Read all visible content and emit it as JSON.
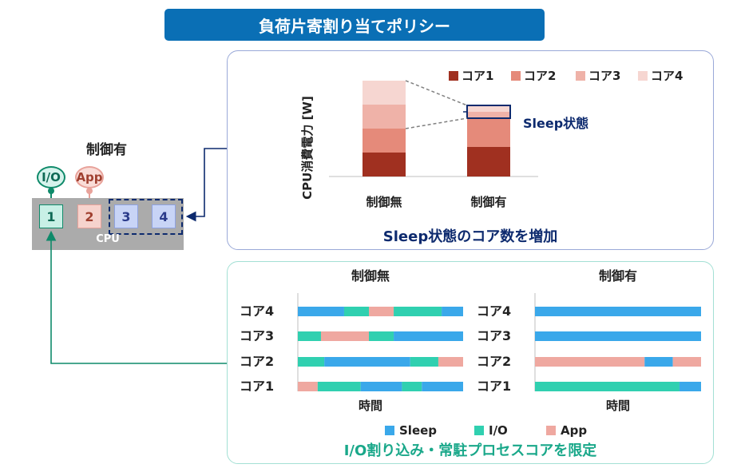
{
  "title": "負荷片寄割り当てポリシー",
  "left": {
    "label": "制御有",
    "io_bubble": "I/O",
    "app_bubble": "App",
    "cores": [
      "1",
      "2",
      "3",
      "4"
    ],
    "cpu_label": "CPU"
  },
  "power_panel": {
    "caption": "Sleep状態のコア数を増加",
    "sleep_note": "Sleep状態"
  },
  "timeline_panel": {
    "caption": "I/O割り込み・常駐プロセスコアを限定",
    "x_label": "時間"
  },
  "colors": {
    "title_bg": "#0a6fb5",
    "core1": "#a03020",
    "core2": "#e58a7a",
    "core3": "#efb2a8",
    "core4": "#f6d6d1",
    "sleep": "#3aa8ea",
    "io": "#30d0b0",
    "app": "#efa8a0",
    "io_green": "#0f8a6a"
  },
  "chart_data": [
    {
      "type": "bar",
      "stacked": true,
      "ylabel": "CPU消費電力 [W]",
      "categories": [
        "制御無",
        "制御有"
      ],
      "series": [
        {
          "name": "コア1",
          "values": [
            30,
            37
          ]
        },
        {
          "name": "コア2",
          "values": [
            30,
            36
          ]
        },
        {
          "name": "コア3",
          "values": [
            30,
            8
          ]
        },
        {
          "name": "コア4",
          "values": [
            30,
            8
          ]
        }
      ],
      "ylim": [
        0,
        120
      ],
      "grid": false,
      "legend": "top"
    },
    {
      "type": "bar",
      "orientation": "horizontal",
      "stacked": true,
      "title": "制御無",
      "xlabel": "時間",
      "categories": [
        "コア4",
        "コア3",
        "コア2",
        "コア1"
      ],
      "segments": [
        [
          [
            "Sleep",
            28
          ],
          [
            "I/O",
            15
          ],
          [
            "App",
            15
          ],
          [
            "I/O",
            29
          ],
          [
            "Sleep",
            13
          ]
        ],
        [
          [
            "I/O",
            14
          ],
          [
            "App",
            29
          ],
          [
            "I/O",
            15
          ],
          [
            "Sleep",
            42
          ]
        ],
        [
          [
            "I/O",
            16
          ],
          [
            "Sleep",
            52
          ],
          [
            "I/O",
            17
          ],
          [
            "App",
            15
          ]
        ],
        [
          [
            "App",
            12
          ],
          [
            "I/O",
            26
          ],
          [
            "Sleep",
            25
          ],
          [
            "I/O",
            12
          ],
          [
            "Sleep",
            25
          ]
        ]
      ],
      "legend_entries": [
        "Sleep",
        "I/O",
        "App"
      ],
      "xlim": [
        0,
        100
      ]
    },
    {
      "type": "bar",
      "orientation": "horizontal",
      "stacked": true,
      "title": "制御有",
      "xlabel": "時間",
      "categories": [
        "コア4",
        "コア3",
        "コア2",
        "コア1"
      ],
      "segments": [
        [
          [
            "Sleep",
            100
          ]
        ],
        [
          [
            "Sleep",
            100
          ]
        ],
        [
          [
            "App",
            66
          ],
          [
            "Sleep",
            17
          ],
          [
            "App",
            17
          ]
        ],
        [
          [
            "I/O",
            87
          ],
          [
            "Sleep",
            13
          ]
        ]
      ],
      "xlim": [
        0,
        100
      ]
    }
  ]
}
